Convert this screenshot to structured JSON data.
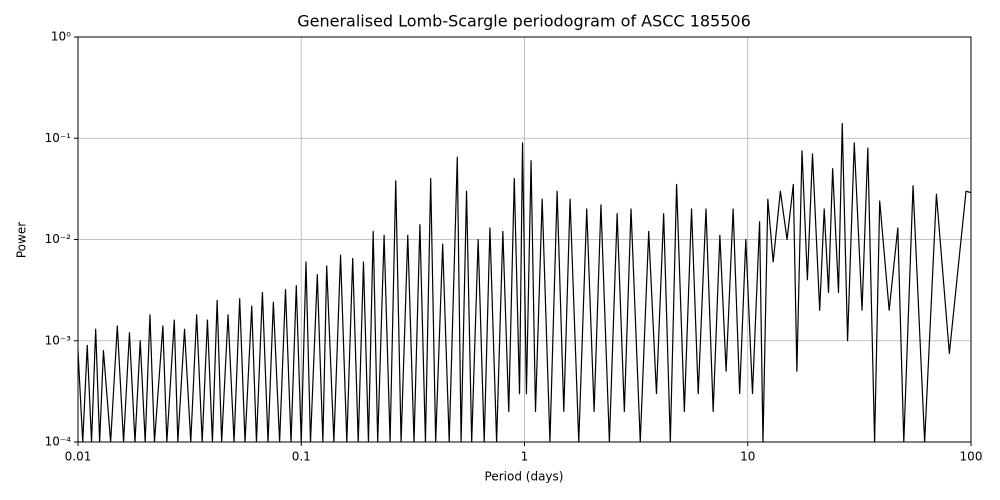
{
  "chart_data": {
    "type": "line",
    "title": "Generalised Lomb-Scargle periodogram of ASCC 185506",
    "xlabel": "Period (days)",
    "ylabel": "Power",
    "xscale": "log",
    "yscale": "log",
    "grid": true,
    "xlim": [
      0.01,
      100
    ],
    "ylim": [
      0.0001,
      1
    ],
    "xticks": [
      0.01,
      0.1,
      1,
      10,
      100
    ],
    "yticks": [
      {
        "value": 0.0001,
        "label": "10⁻⁴"
      },
      {
        "value": 0.001,
        "label": "10⁻³"
      },
      {
        "value": 0.01,
        "label": "10⁻²"
      },
      {
        "value": 0.1,
        "label": "10⁻¹"
      },
      {
        "value": 1,
        "label": "10⁰"
      }
    ],
    "x": [
      0.01,
      0.0105,
      0.011,
      0.0115,
      0.012,
      0.0125,
      0.013,
      0.014,
      0.015,
      0.016,
      0.017,
      0.018,
      0.019,
      0.02,
      0.021,
      0.022,
      0.024,
      0.025,
      0.027,
      0.028,
      0.03,
      0.032,
      0.034,
      0.036,
      0.038,
      0.04,
      0.042,
      0.044,
      0.047,
      0.05,
      0.053,
      0.056,
      0.06,
      0.063,
      0.067,
      0.071,
      0.075,
      0.08,
      0.085,
      0.09,
      0.095,
      0.1,
      0.105,
      0.11,
      0.118,
      0.125,
      0.13,
      0.14,
      0.15,
      0.16,
      0.17,
      0.18,
      0.19,
      0.2,
      0.21,
      0.22,
      0.235,
      0.25,
      0.265,
      0.28,
      0.3,
      0.32,
      0.34,
      0.36,
      0.38,
      0.4,
      0.43,
      0.46,
      0.5,
      0.52,
      0.55,
      0.58,
      0.62,
      0.66,
      0.7,
      0.75,
      0.8,
      0.85,
      0.9,
      0.95,
      0.98,
      1.02,
      1.07,
      1.12,
      1.2,
      1.3,
      1.4,
      1.5,
      1.6,
      1.75,
      1.9,
      2.05,
      2.2,
      2.4,
      2.6,
      2.8,
      3.0,
      3.3,
      3.6,
      3.9,
      4.2,
      4.5,
      4.8,
      5.2,
      5.6,
      6.0,
      6.5,
      7.0,
      7.5,
      8.0,
      8.6,
      9.2,
      9.8,
      10.5,
      11.3,
      11.7,
      12.3,
      13,
      14,
      15,
      16,
      16.6,
      17.5,
      18.5,
      19.5,
      21,
      22,
      23,
      24,
      25.5,
      26.5,
      28,
      30,
      32.5,
      34.5,
      37,
      39,
      43,
      47,
      50,
      55,
      62,
      70,
      80,
      95,
      100
    ],
    "series": [
      {
        "color": "#000000",
        "values": [
          0.0008,
          0.0001,
          0.0009,
          0.0001,
          0.0013,
          0.0001,
          0.0008,
          0.0001,
          0.0014,
          0.0001,
          0.0012,
          0.0001,
          0.001,
          0.0001,
          0.0018,
          0.0001,
          0.0014,
          0.0001,
          0.0016,
          0.0001,
          0.0013,
          0.0001,
          0.0018,
          0.0001,
          0.0016,
          0.0001,
          0.0025,
          0.0001,
          0.0018,
          0.0001,
          0.0026,
          0.0001,
          0.0022,
          0.0001,
          0.003,
          0.0001,
          0.0024,
          0.0001,
          0.0032,
          0.0001,
          0.0035,
          0.0001,
          0.006,
          0.0001,
          0.0045,
          0.0001,
          0.0055,
          0.0001,
          0.007,
          0.0001,
          0.0065,
          0.0001,
          0.006,
          0.0001,
          0.012,
          0.0001,
          0.011,
          0.0001,
          0.038,
          0.0001,
          0.011,
          0.0001,
          0.014,
          0.0001,
          0.04,
          0.0001,
          0.009,
          0.0001,
          0.065,
          0.0001,
          0.03,
          0.0001,
          0.01,
          0.0001,
          0.013,
          0.0001,
          0.012,
          0.0002,
          0.04,
          0.0003,
          0.09,
          0.0003,
          0.06,
          0.0002,
          0.025,
          0.0001,
          0.03,
          0.0002,
          0.025,
          0.0001,
          0.02,
          0.0002,
          0.022,
          0.0001,
          0.018,
          0.0002,
          0.02,
          0.0001,
          0.012,
          0.0003,
          0.018,
          0.0001,
          0.035,
          0.0002,
          0.02,
          0.0003,
          0.02,
          0.0002,
          0.011,
          0.0005,
          0.02,
          0.0003,
          0.01,
          0.0003,
          0.015,
          0.0001,
          0.025,
          0.006,
          0.03,
          0.01,
          0.035,
          0.0005,
          0.075,
          0.004,
          0.07,
          0.002,
          0.02,
          0.003,
          0.05,
          0.003,
          0.14,
          0.001,
          0.09,
          0.002,
          0.08,
          0.0001,
          0.024,
          0.002,
          0.013,
          0.0001,
          0.034,
          0.0001,
          0.028,
          0.00075,
          0.03,
          0.029
        ]
      }
    ]
  }
}
